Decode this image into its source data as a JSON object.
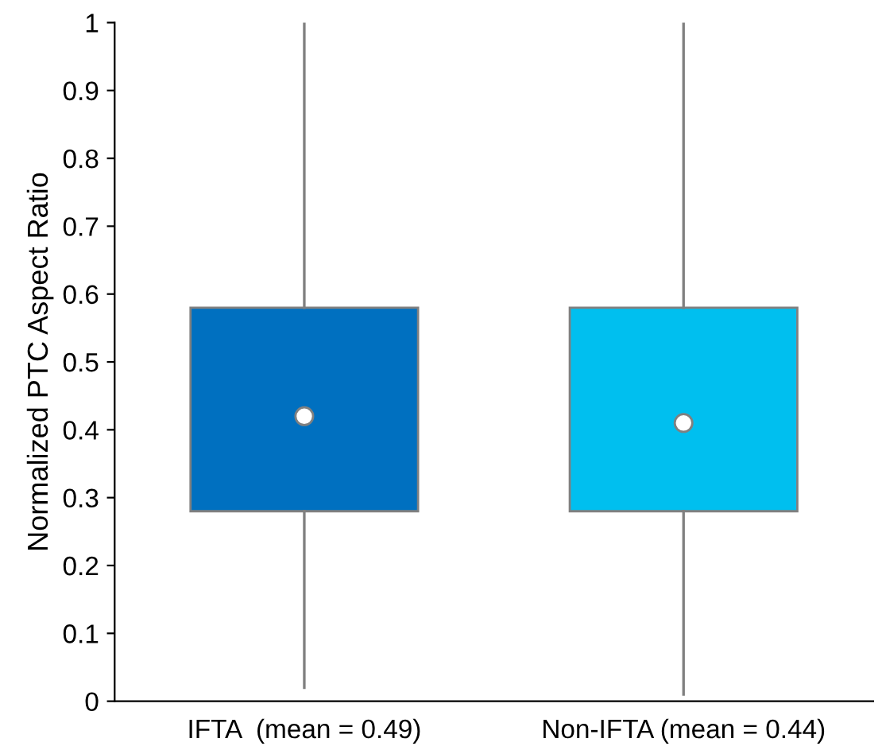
{
  "chart_data": {
    "type": "box",
    "ylabel": "Normalized PTC Aspect Ratio",
    "categories": [
      "IFTA  (mean = 0.49)",
      "Non-IFTA (mean = 0.44)"
    ],
    "colors": [
      "#0070c0",
      "#00bfef"
    ],
    "boxes": [
      {
        "low": 0.02,
        "q1": 0.28,
        "median": 0.42,
        "q3": 0.58,
        "high": 1.0
      },
      {
        "low": 0.01,
        "q1": 0.28,
        "median": 0.41,
        "q3": 0.58,
        "high": 1.0
      }
    ],
    "ylim": [
      0,
      1
    ],
    "yticks": [
      0,
      0.1,
      0.2,
      0.3,
      0.4,
      0.5,
      0.6,
      0.7,
      0.8,
      0.9,
      1
    ],
    "grid": false
  }
}
